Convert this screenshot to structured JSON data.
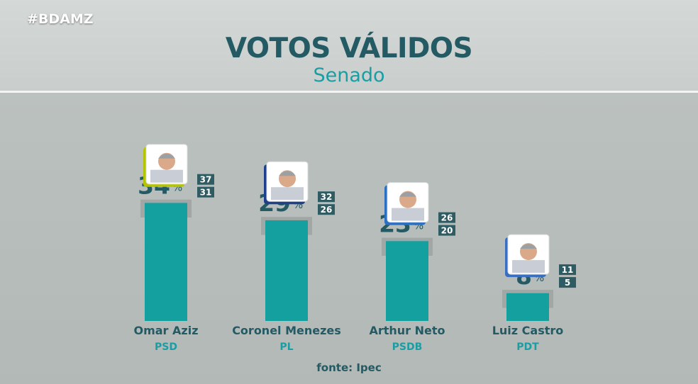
{
  "header": {
    "hashtag": "#BDAMZ",
    "title": "VOTOS VÁLIDOS",
    "subtitle": "Senado"
  },
  "source": "fonte: Ipec",
  "colors": {
    "bar": "#14a09f",
    "range_band": "#9ea3a1",
    "percent_text": "#245a63",
    "party_text": "#1a9ea3",
    "range_box": "#2f5c63",
    "background": "#bcc1bf"
  },
  "chart_data": {
    "type": "bar",
    "title": "VOTOS VÁLIDOS",
    "subtitle": "Senado",
    "xlabel": "",
    "ylabel": "",
    "categories": [
      "Omar Aziz",
      "Coronel Menezes",
      "Arthur Neto",
      "Luiz Castro"
    ],
    "parties": [
      "PSD",
      "PL",
      "PSDB",
      "PDT"
    ],
    "values": [
      34,
      29,
      23,
      8
    ],
    "unit": "%",
    "range_high": [
      37,
      32,
      26,
      11
    ],
    "range_low": [
      31,
      26,
      20,
      5
    ],
    "photo_frame_colors": [
      "#b5c400",
      "#1f3f8a",
      "#2a6fc0",
      "#3a6fc0"
    ],
    "ylim": [
      0,
      40
    ],
    "grid": false,
    "legend": "none"
  }
}
